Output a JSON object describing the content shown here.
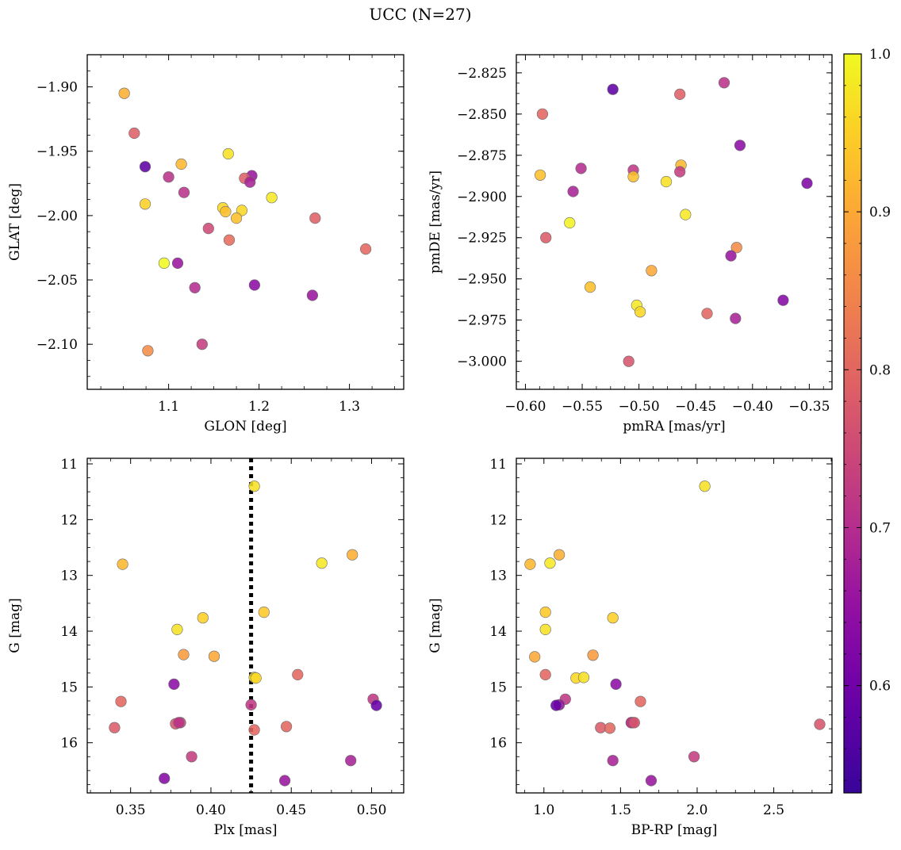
{
  "figure": {
    "title": "UCC (N=27)"
  },
  "chart_data": [
    {
      "type": "scatter",
      "xlabel": "GLON [deg]",
      "ylabel": "GLAT [deg]",
      "xlim": [
        1.01,
        1.36
      ],
      "ylim": [
        -2.135,
        -1.875
      ],
      "y_inverted": false,
      "xticks": [
        "1.1",
        "1.2",
        "1.3"
      ],
      "xtick_values": [
        1.1,
        1.2,
        1.3
      ],
      "yticks": [
        "−1.90",
        "−1.95",
        "−2.00",
        "−2.05",
        "−2.10"
      ],
      "ytick_values": [
        -1.9,
        -1.95,
        -2.0,
        -2.05,
        -2.1
      ],
      "x": [
        1.051,
        1.062,
        1.074,
        1.114,
        1.166,
        1.1,
        1.192,
        1.184,
        1.19,
        1.117,
        1.214,
        1.074,
        1.16,
        1.163,
        1.181,
        1.175,
        1.262,
        1.144,
        1.167,
        1.318,
        1.095,
        1.11,
        1.195,
        1.129,
        1.259,
        1.137,
        1.077
      ],
      "y": [
        -1.905,
        -1.936,
        -1.962,
        -1.96,
        -1.952,
        -1.97,
        -1.969,
        -1.971,
        -1.974,
        -1.982,
        -1.986,
        -1.991,
        -1.994,
        -1.997,
        -1.996,
        -2.002,
        -2.002,
        -2.01,
        -2.019,
        -2.026,
        -2.037,
        -2.037,
        -2.054,
        -2.056,
        -2.062,
        -2.1,
        -2.105
      ],
      "color_values": [
        0.91,
        0.79,
        0.58,
        0.92,
        0.97,
        0.71,
        0.66,
        0.79,
        0.68,
        0.71,
        0.98,
        0.95,
        0.96,
        0.93,
        0.96,
        0.93,
        0.79,
        0.75,
        0.81,
        0.8,
        1.0,
        0.66,
        0.64,
        0.7,
        0.66,
        0.73,
        0.86
      ]
    },
    {
      "type": "scatter",
      "xlabel": "pmRA [mas/yr]",
      "ylabel": "pmDE [mas/yr]",
      "xlim": [
        -0.608,
        -0.33
      ],
      "ylim": [
        -3.017,
        -2.814
      ],
      "y_inverted": false,
      "xticks": [
        "−0.60",
        "−0.55",
        "−0.50",
        "−0.45",
        "−0.40",
        "−0.35"
      ],
      "xtick_values": [
        -0.6,
        -0.55,
        -0.5,
        -0.45,
        -0.4,
        -0.35
      ],
      "yticks": [
        "−2.825",
        "−2.850",
        "−2.875",
        "−2.900",
        "−2.925",
        "−2.950",
        "−2.975",
        "−3.000"
      ],
      "ytick_values": [
        -2.825,
        -2.85,
        -2.875,
        -2.9,
        -2.925,
        -2.95,
        -2.975,
        -3.0
      ],
      "x": [
        -0.523,
        -0.425,
        -0.464,
        -0.585,
        -0.411,
        -0.463,
        -0.551,
        -0.505,
        -0.464,
        -0.587,
        -0.505,
        -0.476,
        -0.352,
        -0.558,
        -0.459,
        -0.561,
        -0.582,
        -0.414,
        -0.419,
        -0.489,
        -0.543,
        -0.502,
        -0.373,
        -0.499,
        -0.44,
        -0.415,
        -0.509
      ],
      "y": [
        -2.835,
        -2.831,
        -2.838,
        -2.85,
        -2.869,
        -2.881,
        -2.883,
        -2.884,
        -2.885,
        -2.887,
        -2.888,
        -2.891,
        -2.892,
        -2.897,
        -2.911,
        -2.916,
        -2.925,
        -2.931,
        -2.936,
        -2.945,
        -2.955,
        -2.966,
        -2.963,
        -2.97,
        -2.971,
        -2.974,
        -3.0
      ],
      "color_values": [
        0.58,
        0.71,
        0.79,
        0.8,
        0.64,
        0.92,
        0.7,
        0.72,
        0.73,
        0.93,
        0.93,
        0.97,
        0.62,
        0.68,
        0.98,
        0.99,
        0.78,
        0.86,
        0.66,
        0.9,
        0.93,
        0.98,
        0.63,
        0.96,
        0.8,
        0.68,
        0.77
      ]
    },
    {
      "type": "scatter",
      "xlabel": "Plx [mas]",
      "ylabel": "G [mag]",
      "xlim": [
        0.323,
        0.52
      ],
      "ylim": [
        16.9,
        10.9
      ],
      "y_inverted": true,
      "xticks": [
        "0.35",
        "0.40",
        "0.45",
        "0.50"
      ],
      "xtick_values": [
        0.35,
        0.4,
        0.45,
        0.5
      ],
      "yticks": [
        "11",
        "12",
        "13",
        "14",
        "15",
        "16"
      ],
      "ytick_values": [
        11,
        12,
        13,
        14,
        15,
        16
      ],
      "vline": {
        "x": 0.425,
        "style": "dotted"
      },
      "x": [
        0.427,
        0.488,
        0.345,
        0.469,
        0.433,
        0.395,
        0.379,
        0.383,
        0.402,
        0.427,
        0.428,
        0.454,
        0.377,
        0.501,
        0.503,
        0.344,
        0.425,
        0.378,
        0.381,
        0.34,
        0.447,
        0.427,
        0.388,
        0.487,
        0.371,
        0.446,
        0.38
      ],
      "y": [
        11.4,
        12.63,
        12.8,
        12.78,
        13.66,
        13.76,
        13.97,
        14.42,
        14.45,
        14.83,
        14.84,
        14.78,
        14.95,
        15.22,
        15.33,
        15.26,
        15.32,
        15.66,
        15.64,
        15.73,
        15.71,
        15.77,
        16.25,
        16.32,
        16.64,
        16.68,
        15.64
      ],
      "color_values": [
        0.97,
        0.91,
        0.92,
        0.98,
        0.94,
        0.95,
        0.97,
        0.88,
        0.9,
        0.97,
        0.96,
        0.8,
        0.64,
        0.72,
        0.59,
        0.8,
        0.72,
        0.77,
        0.75,
        0.78,
        0.8,
        0.8,
        0.73,
        0.68,
        0.63,
        0.66,
        0.71
      ]
    },
    {
      "type": "scatter",
      "xlabel": "BP-RP [mag]",
      "ylabel": "G [mag]",
      "xlim": [
        0.82,
        2.88
      ],
      "ylim": [
        16.9,
        10.9
      ],
      "y_inverted": true,
      "xticks": [
        "1.0",
        "1.5",
        "2.0",
        "2.5"
      ],
      "xtick_values": [
        1.0,
        1.5,
        2.0,
        2.5
      ],
      "yticks": [
        "11",
        "12",
        "13",
        "14",
        "15",
        "16"
      ],
      "ytick_values": [
        11,
        12,
        13,
        14,
        15,
        16
      ],
      "x": [
        2.05,
        1.1,
        0.91,
        1.04,
        1.01,
        1.45,
        1.01,
        0.94,
        1.32,
        1.01,
        1.21,
        1.26,
        1.47,
        1.14,
        1.1,
        1.63,
        1.08,
        1.58,
        1.57,
        1.37,
        1.43,
        2.8,
        1.45,
        1.98,
        1.7,
        1.57,
        1.59
      ],
      "y": [
        11.4,
        12.63,
        12.8,
        12.78,
        13.66,
        13.76,
        13.97,
        14.46,
        14.43,
        14.78,
        14.84,
        14.83,
        14.95,
        15.22,
        15.32,
        15.26,
        15.33,
        15.64,
        15.64,
        15.73,
        15.74,
        15.67,
        16.32,
        16.25,
        16.68,
        15.64,
        15.64
      ],
      "color_values": [
        0.97,
        0.91,
        0.92,
        0.98,
        0.94,
        0.95,
        0.97,
        0.9,
        0.88,
        0.8,
        0.96,
        0.97,
        0.64,
        0.72,
        0.66,
        0.8,
        0.59,
        0.75,
        0.71,
        0.78,
        0.8,
        0.77,
        0.68,
        0.73,
        0.66,
        0.72,
        0.77
      ]
    }
  ],
  "colorbar": {
    "range": [
      0.532,
      1.0
    ],
    "ticks": [
      "0.6",
      "0.7",
      "0.8",
      "0.9",
      "1.0"
    ],
    "tick_values": [
      0.6,
      0.7,
      0.8,
      0.9,
      1.0
    ],
    "colormap": "plasma"
  }
}
